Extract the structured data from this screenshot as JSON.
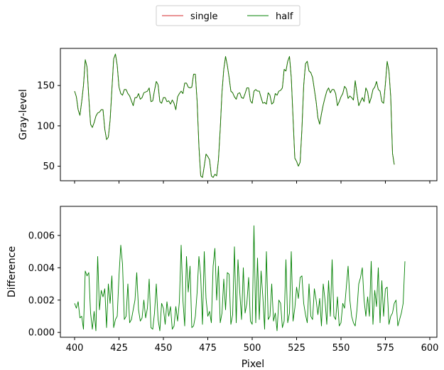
{
  "legend": {
    "entries": [
      {
        "label": "single",
        "color": "#d62728"
      },
      {
        "label": "half",
        "color": "#008000"
      }
    ]
  },
  "chart_data": [
    {
      "type": "line",
      "ylabel": "Gray-level",
      "xlim": [
        392,
        604
      ],
      "ylim": [
        32,
        196
      ],
      "yticks": [
        50,
        100,
        150
      ],
      "xticks": [
        400,
        425,
        450,
        475,
        500,
        525,
        550,
        575,
        600
      ],
      "x_start": 400,
      "series": [
        {
          "name": "single",
          "color": "#d62728",
          "values": [
            143,
            136,
            120,
            113,
            130,
            150,
            182,
            173,
            135,
            102,
            98,
            104,
            112,
            116,
            117,
            120,
            120,
            96,
            83,
            86,
            107,
            145,
            183,
            189,
            175,
            148,
            140,
            138,
            145,
            145,
            140,
            137,
            131,
            125,
            135,
            135,
            140,
            133,
            135,
            141,
            142,
            143,
            147,
            130,
            131,
            144,
            155,
            151,
            130,
            128,
            135,
            135,
            130,
            131,
            127,
            132,
            128,
            120,
            136,
            140,
            143,
            140,
            153,
            153,
            148,
            147,
            148,
            164,
            164,
            130,
            75,
            38,
            36,
            50,
            65,
            62,
            58,
            38,
            36,
            40,
            38,
            58,
            96,
            142,
            170,
            186,
            175,
            160,
            143,
            141,
            136,
            133,
            140,
            141,
            135,
            134,
            140,
            147,
            147,
            131,
            128,
            143,
            145,
            143,
            143,
            135,
            128,
            129,
            127,
            141,
            138,
            127,
            129,
            140,
            138,
            143,
            144,
            147,
            170,
            168,
            180,
            186,
            160,
            110,
            60,
            56,
            50,
            55,
            96,
            150,
            177,
            180,
            168,
            166,
            160,
            145,
            130,
            110,
            102,
            115,
            126,
            135,
            143,
            147,
            141,
            145,
            145,
            140,
            125,
            130,
            136,
            140,
            149,
            146,
            134,
            137,
            135,
            132,
            156,
            140,
            125,
            130,
            135,
            130,
            147,
            142,
            128,
            135,
            145,
            148,
            155,
            145,
            143,
            130,
            128,
            152,
            180,
            168,
            136,
            66,
            52
          ]
        },
        {
          "name": "half",
          "color": "#008000",
          "values": [
            143,
            136,
            120,
            113,
            130,
            150,
            182,
            173,
            135,
            102,
            98,
            104,
            112,
            116,
            117,
            120,
            120,
            96,
            83,
            86,
            107,
            145,
            183,
            189,
            175,
            148,
            140,
            138,
            145,
            145,
            140,
            137,
            131,
            125,
            135,
            135,
            140,
            133,
            135,
            141,
            142,
            143,
            147,
            130,
            131,
            144,
            155,
            151,
            130,
            128,
            135,
            135,
            130,
            131,
            127,
            132,
            128,
            120,
            136,
            140,
            143,
            140,
            153,
            153,
            148,
            147,
            148,
            164,
            164,
            130,
            75,
            38,
            36,
            50,
            65,
            62,
            58,
            38,
            36,
            40,
            38,
            58,
            96,
            142,
            170,
            186,
            175,
            160,
            143,
            141,
            136,
            133,
            140,
            141,
            135,
            134,
            140,
            147,
            147,
            131,
            128,
            143,
            145,
            143,
            143,
            135,
            128,
            129,
            127,
            141,
            138,
            127,
            129,
            140,
            138,
            143,
            144,
            147,
            170,
            168,
            180,
            186,
            160,
            110,
            60,
            56,
            50,
            55,
            96,
            150,
            177,
            180,
            168,
            166,
            160,
            145,
            130,
            110,
            102,
            115,
            126,
            135,
            143,
            147,
            141,
            145,
            145,
            140,
            125,
            130,
            136,
            140,
            149,
            146,
            134,
            137,
            135,
            132,
            156,
            140,
            125,
            130,
            135,
            130,
            147,
            142,
            128,
            135,
            145,
            148,
            155,
            145,
            143,
            130,
            128,
            152,
            180,
            168,
            136,
            66,
            52
          ]
        }
      ]
    },
    {
      "type": "line",
      "ylabel": "Difference",
      "xlabel": "Pixel",
      "xlim": [
        392,
        604
      ],
      "ylim": [
        -0.0003,
        0.0078
      ],
      "yticks": [
        0.0,
        0.002,
        0.004,
        0.006
      ],
      "ytick_labels": [
        "0.000",
        "0.002",
        "0.004",
        "0.006"
      ],
      "xticks": [
        400,
        425,
        450,
        475,
        500,
        525,
        550,
        575,
        600
      ],
      "x_start": 400,
      "series": [
        {
          "name": "half",
          "color": "#008000",
          "values": [
            0.0018,
            0.0015,
            0.0019,
            0.0009,
            0.001,
            0.0002,
            0.0038,
            0.0035,
            0.0037,
            0.0012,
            0.0002,
            0.0013,
            0.0001,
            0.0047,
            0.0014,
            0.0026,
            0.0022,
            0.0027,
            0.0003,
            0.003,
            0.0018,
            0.0035,
            0.0003,
            0.0008,
            0.001,
            0.0035,
            0.0054,
            0.0042,
            0.0008,
            0.001,
            0.003,
            0.0006,
            0.0008,
            0.0014,
            0.002,
            0.0037,
            0.0014,
            0.0007,
            0.0009,
            0.002,
            0.0009,
            0.0015,
            0.0033,
            0.0003,
            0.0002,
            0.0012,
            0.003,
            0.0008,
            0.0001,
            0.0018,
            0.0015,
            0.0005,
            0.0019,
            0.001,
            0.0016,
            0.0002,
            0.0004,
            0.0016,
            0.0007,
            0.0019,
            0.0054,
            0.002,
            0.0004,
            0.0047,
            0.0025,
            0.0041,
            0.0003,
            0.0004,
            0.001,
            0.0025,
            0.0047,
            0.0035,
            0.0005,
            0.005,
            0.0021,
            0.001,
            0.0013,
            0.0006,
            0.0041,
            0.0052,
            0.002,
            0.0041,
            0.0006,
            0.0012,
            0.0033,
            0.0014,
            0.0037,
            0.0036,
            0.0005,
            0.0011,
            0.0053,
            0.0006,
            0.0045,
            0.0025,
            0.0008,
            0.004,
            0.0012,
            0.0018,
            0.0034,
            0.0007,
            0.0005,
            0.0066,
            0.0006,
            0.0046,
            0.0008,
            0.0038,
            0.0022,
            0.0002,
            0.005,
            0.0008,
            0.001,
            0.003,
            0.0007,
            0.0012,
            0.0001,
            0.002,
            0.0018,
            0.0003,
            0.0007,
            0.0045,
            0.0006,
            0.0012,
            0.005,
            0.0007,
            0.0015,
            0.0028,
            0.0021,
            0.0034,
            0.0035,
            0.0018,
            0.0011,
            0.0006,
            0.003,
            0.001,
            0.0008,
            0.0027,
            0.002,
            0.0011,
            0.0021,
            0.0004,
            0.003,
            0.002,
            0.0005,
            0.0032,
            0.001,
            0.0045,
            0.001,
            0.0008,
            0.0022,
            0.0004,
            0.0006,
            0.0018,
            0.0015,
            0.0028,
            0.0041,
            0.002,
            0.001,
            0.0006,
            0.0004,
            0.0014,
            0.003,
            0.0034,
            0.004,
            0.002,
            0.001,
            0.0022,
            0.001,
            0.0044,
            0.0005,
            0.0026,
            0.0016,
            0.004,
            0.0006,
            0.0032,
            0.001,
            0.0027,
            0.0028,
            0.0005,
            0.001,
            0.0012,
            0.0018,
            0.002,
            0.0004,
            0.0008,
            0.0012,
            0.0018,
            0.0044
          ]
        }
      ]
    }
  ]
}
